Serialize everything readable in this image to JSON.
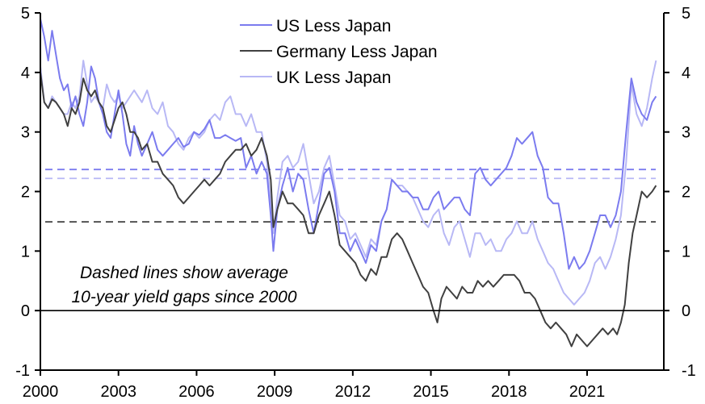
{
  "chart_data": {
    "type": "line",
    "title": "",
    "xlabel": "",
    "ylabel": "",
    "ylim": [
      -1,
      5
    ],
    "y2lim": [
      -1,
      5
    ],
    "xlim": [
      2000,
      2023.9
    ],
    "yticks": [
      -1,
      0,
      1,
      2,
      3,
      4,
      5
    ],
    "xticks": [
      2000,
      2003,
      2006,
      2009,
      2012,
      2015,
      2018,
      2021
    ],
    "xtick_labels": [
      "2000",
      "2003",
      "2006",
      "2009",
      "2012",
      "2015",
      "2018",
      "2021"
    ],
    "grid": false,
    "legend": {
      "placement": "top-center",
      "entries": [
        "US Less Japan",
        "Germany Less Japan",
        "UK Less Japan"
      ]
    },
    "annotations": [
      "Dashed lines show average",
      "10-year yield gaps since 2000"
    ],
    "zero_line": 0,
    "averages": [
      {
        "name": "US Less Japan average",
        "value": 2.37,
        "color": "#7b7bef"
      },
      {
        "name": "UK Less Japan average",
        "value": 2.22,
        "color": "#b8b8f5"
      },
      {
        "name": "Germany Less Japan average",
        "value": 1.49,
        "color": "#404040"
      }
    ],
    "series": [
      {
        "name": "US Less Japan",
        "color": "#7b7bef",
        "x": [
          2000.0,
          2000.15,
          2000.3,
          2000.45,
          2000.6,
          2000.75,
          2000.9,
          2001.05,
          2001.2,
          2001.35,
          2001.5,
          2001.65,
          2001.8,
          2001.95,
          2002.1,
          2002.25,
          2002.4,
          2002.55,
          2002.7,
          2002.85,
          2003.0,
          2003.15,
          2003.3,
          2003.45,
          2003.6,
          2003.75,
          2003.9,
          2004.1,
          2004.3,
          2004.5,
          2004.7,
          2004.9,
          2005.1,
          2005.3,
          2005.5,
          2005.7,
          2005.9,
          2006.1,
          2006.3,
          2006.5,
          2006.7,
          2006.9,
          2007.1,
          2007.3,
          2007.5,
          2007.7,
          2007.9,
          2008.1,
          2008.3,
          2008.5,
          2008.7,
          2008.85,
          2008.95,
          2009.1,
          2009.3,
          2009.5,
          2009.7,
          2009.9,
          2010.1,
          2010.3,
          2010.5,
          2010.7,
          2010.9,
          2011.1,
          2011.3,
          2011.5,
          2011.7,
          2011.9,
          2012.1,
          2012.3,
          2012.5,
          2012.7,
          2012.9,
          2013.1,
          2013.3,
          2013.5,
          2013.7,
          2013.9,
          2014.1,
          2014.3,
          2014.5,
          2014.7,
          2014.9,
          2015.1,
          2015.3,
          2015.5,
          2015.7,
          2015.9,
          2016.1,
          2016.3,
          2016.5,
          2016.7,
          2016.9,
          2017.1,
          2017.3,
          2017.5,
          2017.7,
          2017.9,
          2018.1,
          2018.3,
          2018.5,
          2018.7,
          2018.9,
          2019.1,
          2019.3,
          2019.5,
          2019.7,
          2019.9,
          2020.1,
          2020.3,
          2020.5,
          2020.7,
          2020.9,
          2021.1,
          2021.3,
          2021.5,
          2021.7,
          2021.9,
          2022.1,
          2022.3,
          2022.5,
          2022.7,
          2022.9,
          2023.1,
          2023.3,
          2023.5,
          2023.65
        ],
        "values": [
          4.9,
          4.6,
          4.2,
          4.7,
          4.3,
          3.9,
          3.7,
          3.8,
          3.4,
          3.6,
          3.3,
          3.1,
          3.5,
          4.1,
          3.9,
          3.5,
          3.3,
          3.0,
          2.9,
          3.3,
          3.7,
          3.3,
          2.8,
          2.6,
          3.1,
          2.8,
          2.6,
          2.8,
          3.0,
          2.7,
          2.6,
          2.7,
          2.8,
          2.9,
          2.75,
          2.8,
          3.0,
          2.95,
          3.05,
          3.2,
          2.9,
          2.9,
          2.95,
          2.9,
          2.85,
          2.9,
          2.4,
          2.6,
          2.3,
          2.5,
          2.3,
          1.6,
          1.0,
          1.7,
          2.1,
          2.4,
          2.0,
          2.3,
          2.2,
          1.7,
          1.3,
          1.8,
          2.3,
          2.4,
          2.0,
          1.3,
          1.3,
          1.0,
          1.2,
          1.0,
          0.8,
          1.1,
          1.0,
          1.5,
          1.7,
          2.2,
          2.1,
          2.0,
          2.0,
          1.9,
          1.9,
          1.7,
          1.7,
          1.9,
          2.0,
          1.7,
          1.8,
          1.9,
          1.9,
          1.7,
          1.6,
          2.3,
          2.4,
          2.2,
          2.1,
          2.2,
          2.3,
          2.4,
          2.6,
          2.9,
          2.8,
          2.9,
          3.0,
          2.6,
          2.4,
          1.9,
          1.8,
          1.8,
          1.3,
          0.7,
          0.9,
          0.7,
          0.8,
          1.0,
          1.3,
          1.6,
          1.6,
          1.4,
          1.6,
          2.0,
          3.0,
          3.9,
          3.5,
          3.3,
          3.2,
          3.5,
          3.6
        ]
      },
      {
        "name": "Germany Less Japan",
        "color": "#404040",
        "x": [
          2000.0,
          2000.15,
          2000.3,
          2000.45,
          2000.6,
          2000.75,
          2000.9,
          2001.05,
          2001.2,
          2001.35,
          2001.5,
          2001.65,
          2001.8,
          2001.95,
          2002.1,
          2002.25,
          2002.4,
          2002.55,
          2002.7,
          2002.85,
          2003.0,
          2003.15,
          2003.3,
          2003.45,
          2003.6,
          2003.75,
          2003.9,
          2004.1,
          2004.3,
          2004.5,
          2004.7,
          2004.9,
          2005.1,
          2005.3,
          2005.5,
          2005.7,
          2005.9,
          2006.1,
          2006.3,
          2006.5,
          2006.7,
          2006.9,
          2007.1,
          2007.3,
          2007.5,
          2007.7,
          2007.9,
          2008.1,
          2008.3,
          2008.5,
          2008.7,
          2008.85,
          2008.95,
          2009.1,
          2009.3,
          2009.5,
          2009.7,
          2009.9,
          2010.1,
          2010.3,
          2010.5,
          2010.7,
          2010.9,
          2011.1,
          2011.3,
          2011.5,
          2011.7,
          2011.9,
          2012.1,
          2012.3,
          2012.5,
          2012.7,
          2012.9,
          2013.1,
          2013.3,
          2013.5,
          2013.7,
          2013.9,
          2014.1,
          2014.3,
          2014.5,
          2014.7,
          2014.9,
          2015.1,
          2015.25,
          2015.4,
          2015.6,
          2015.8,
          2016.0,
          2016.2,
          2016.4,
          2016.6,
          2016.8,
          2017.0,
          2017.2,
          2017.4,
          2017.6,
          2017.8,
          2018.0,
          2018.2,
          2018.4,
          2018.6,
          2018.8,
          2019.0,
          2019.2,
          2019.4,
          2019.6,
          2019.8,
          2020.0,
          2020.2,
          2020.4,
          2020.6,
          2020.8,
          2021.0,
          2021.2,
          2021.4,
          2021.6,
          2021.8,
          2022.0,
          2022.15,
          2022.3,
          2022.45,
          2022.6,
          2022.75,
          2022.9,
          2023.1,
          2023.3,
          2023.5,
          2023.65
        ],
        "values": [
          4.0,
          3.5,
          3.4,
          3.55,
          3.5,
          3.4,
          3.3,
          3.1,
          3.4,
          3.3,
          3.5,
          3.9,
          3.7,
          3.6,
          3.7,
          3.5,
          3.4,
          3.1,
          3.0,
          3.2,
          3.4,
          3.5,
          3.3,
          3.0,
          3.0,
          2.9,
          2.7,
          2.8,
          2.5,
          2.5,
          2.3,
          2.2,
          2.1,
          1.9,
          1.8,
          1.9,
          2.0,
          2.1,
          2.2,
          2.1,
          2.2,
          2.3,
          2.5,
          2.6,
          2.7,
          2.7,
          2.8,
          2.6,
          2.7,
          2.9,
          2.6,
          2.2,
          1.4,
          1.7,
          2.0,
          1.8,
          1.8,
          1.7,
          1.6,
          1.3,
          1.3,
          1.6,
          1.8,
          2.0,
          1.6,
          1.1,
          1.0,
          0.9,
          0.8,
          0.6,
          0.5,
          0.7,
          0.6,
          0.9,
          0.9,
          1.2,
          1.3,
          1.2,
          1.0,
          0.8,
          0.6,
          0.4,
          0.3,
          0.0,
          -0.2,
          0.2,
          0.4,
          0.3,
          0.2,
          0.4,
          0.3,
          0.3,
          0.5,
          0.4,
          0.5,
          0.4,
          0.5,
          0.6,
          0.6,
          0.6,
          0.5,
          0.3,
          0.3,
          0.2,
          0.0,
          -0.2,
          -0.3,
          -0.2,
          -0.3,
          -0.4,
          -0.6,
          -0.4,
          -0.5,
          -0.6,
          -0.5,
          -0.4,
          -0.3,
          -0.4,
          -0.3,
          -0.4,
          -0.2,
          0.1,
          0.8,
          1.3,
          1.6,
          2.0,
          1.9,
          2.0,
          2.1
        ]
      },
      {
        "name": "UK Less Japan",
        "color": "#b8b8f5",
        "x": [
          2000.0,
          2000.15,
          2000.3,
          2000.45,
          2000.6,
          2000.75,
          2000.9,
          2001.05,
          2001.2,
          2001.35,
          2001.5,
          2001.65,
          2001.8,
          2001.95,
          2002.1,
          2002.25,
          2002.4,
          2002.55,
          2002.7,
          2002.85,
          2003.0,
          2003.15,
          2003.3,
          2003.45,
          2003.6,
          2003.75,
          2003.9,
          2004.1,
          2004.3,
          2004.5,
          2004.7,
          2004.9,
          2005.1,
          2005.3,
          2005.5,
          2005.7,
          2005.9,
          2006.1,
          2006.3,
          2006.5,
          2006.7,
          2006.9,
          2007.1,
          2007.3,
          2007.5,
          2007.7,
          2007.9,
          2008.1,
          2008.3,
          2008.5,
          2008.7,
          2008.85,
          2008.95,
          2009.1,
          2009.3,
          2009.5,
          2009.7,
          2009.9,
          2010.1,
          2010.3,
          2010.5,
          2010.7,
          2010.9,
          2011.1,
          2011.3,
          2011.5,
          2011.7,
          2011.9,
          2012.1,
          2012.3,
          2012.5,
          2012.7,
          2012.9,
          2013.1,
          2013.3,
          2013.5,
          2013.7,
          2013.9,
          2014.1,
          2014.3,
          2014.5,
          2014.7,
          2014.9,
          2015.1,
          2015.3,
          2015.5,
          2015.7,
          2015.9,
          2016.1,
          2016.3,
          2016.5,
          2016.7,
          2016.9,
          2017.1,
          2017.3,
          2017.5,
          2017.7,
          2017.9,
          2018.1,
          2018.3,
          2018.5,
          2018.7,
          2018.9,
          2019.1,
          2019.3,
          2019.5,
          2019.7,
          2019.9,
          2020.1,
          2020.3,
          2020.5,
          2020.7,
          2020.9,
          2021.1,
          2021.3,
          2021.5,
          2021.7,
          2021.9,
          2022.1,
          2022.3,
          2022.5,
          2022.7,
          2022.9,
          2023.1,
          2023.3,
          2023.5,
          2023.65
        ],
        "values": [
          4.1,
          3.5,
          3.4,
          3.6,
          3.5,
          3.4,
          3.3,
          3.3,
          3.5,
          3.4,
          3.6,
          4.2,
          3.8,
          3.5,
          3.6,
          3.5,
          3.4,
          3.8,
          3.6,
          3.5,
          3.6,
          3.4,
          3.5,
          3.6,
          3.7,
          3.6,
          3.5,
          3.7,
          3.4,
          3.3,
          3.5,
          3.1,
          3.0,
          2.8,
          2.7,
          2.9,
          3.0,
          2.9,
          3.0,
          3.2,
          3.3,
          3.2,
          3.5,
          3.6,
          3.3,
          3.3,
          3.1,
          3.3,
          3.0,
          3.0,
          2.5,
          1.8,
          1.3,
          1.9,
          2.5,
          2.6,
          2.4,
          2.5,
          2.8,
          2.3,
          1.8,
          2.0,
          2.4,
          2.6,
          2.1,
          1.6,
          1.5,
          1.2,
          1.3,
          1.1,
          0.9,
          1.2,
          1.1,
          1.5,
          1.7,
          2.2,
          2.1,
          2.1,
          2.0,
          1.9,
          1.7,
          1.5,
          1.4,
          1.6,
          1.7,
          1.3,
          1.1,
          1.4,
          1.5,
          1.2,
          0.9,
          1.3,
          1.3,
          1.1,
          1.2,
          1.0,
          1.0,
          1.2,
          1.3,
          1.5,
          1.3,
          1.3,
          1.5,
          1.2,
          1.0,
          0.8,
          0.7,
          0.5,
          0.3,
          0.2,
          0.1,
          0.2,
          0.3,
          0.5,
          0.8,
          0.9,
          0.7,
          0.9,
          1.2,
          1.6,
          2.5,
          3.8,
          3.3,
          3.1,
          3.4,
          3.9,
          4.2
        ]
      }
    ]
  }
}
